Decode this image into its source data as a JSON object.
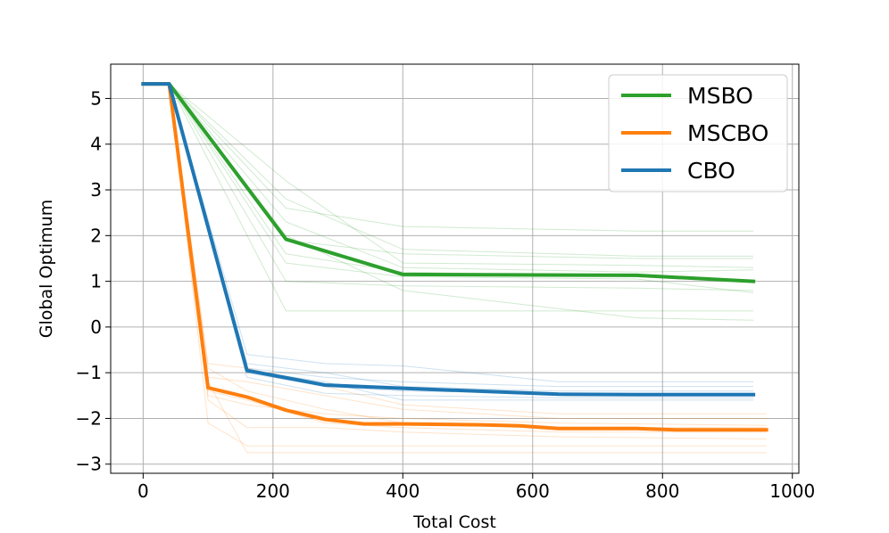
{
  "chart_data": {
    "type": "line",
    "title": "",
    "xlabel": "Total Cost",
    "ylabel": "Global Optimum",
    "xlim": [
      -50,
      1010
    ],
    "ylim": [
      -3.2,
      5.75
    ],
    "xticks": [
      0,
      200,
      400,
      600,
      800,
      1000
    ],
    "yticks": [
      5,
      4,
      3,
      2,
      1,
      0,
      -1,
      -2,
      -3
    ],
    "xtick_labels": [
      "0",
      "200",
      "400",
      "600",
      "800",
      "1000"
    ],
    "ytick_labels": [
      "5",
      "4",
      "3",
      "2",
      "1",
      "0",
      "−1",
      "−2",
      "−3"
    ],
    "grid": true,
    "legend_position": "top-right",
    "colors": {
      "MSBO": "#2ca02c",
      "MSCBO": "#ff7f0e",
      "CBO": "#1f77b4"
    },
    "series": [
      {
        "name": "MSBO",
        "x": [
          0,
          40,
          220,
          400,
          760,
          940
        ],
        "y": [
          5.32,
          5.32,
          1.92,
          1.15,
          1.13,
          1.0
        ]
      },
      {
        "name": "MSCBO",
        "x": [
          0,
          40,
          100,
          160,
          220,
          280,
          340,
          400,
          520,
          580,
          640,
          760,
          820,
          960
        ],
        "y": [
          5.32,
          5.32,
          -1.33,
          -1.53,
          -1.82,
          -2.02,
          -2.12,
          -2.12,
          -2.14,
          -2.16,
          -2.22,
          -2.22,
          -2.25,
          -2.25
        ]
      },
      {
        "name": "CBO",
        "x": [
          0,
          40,
          160,
          280,
          400,
          640,
          760,
          940
        ],
        "y": [
          5.32,
          5.32,
          -0.95,
          -1.27,
          -1.34,
          -1.47,
          -1.48,
          -1.48
        ]
      }
    ],
    "runs": {
      "MSBO": [
        {
          "x": [
            40,
            220,
            400,
            760,
            940
          ],
          "y": [
            5.32,
            1.9,
            1.6,
            1.5,
            1.5
          ]
        },
        {
          "x": [
            40,
            220,
            400,
            760,
            940
          ],
          "y": [
            5.32,
            2.3,
            1.3,
            1.2,
            1.25
          ]
        },
        {
          "x": [
            40,
            220,
            400,
            760,
            940
          ],
          "y": [
            5.32,
            1.6,
            1.2,
            1.1,
            1.0
          ]
        },
        {
          "x": [
            40,
            220,
            400,
            760,
            940
          ],
          "y": [
            5.32,
            1.0,
            0.9,
            0.85,
            0.8
          ]
        },
        {
          "x": [
            40,
            220,
            400,
            760,
            940
          ],
          "y": [
            5.32,
            0.35,
            0.35,
            0.35,
            0.35
          ]
        },
        {
          "x": [
            40,
            220,
            400,
            760,
            940
          ],
          "y": [
            5.32,
            2.8,
            1.7,
            1.55,
            1.55
          ]
        },
        {
          "x": [
            40,
            220,
            400,
            760,
            940
          ],
          "y": [
            5.32,
            3.2,
            1.4,
            1.35,
            1.3
          ]
        },
        {
          "x": [
            40,
            220,
            400,
            760,
            940
          ],
          "y": [
            5.32,
            1.4,
            1.1,
            1.05,
            0.75
          ]
        },
        {
          "x": [
            40,
            220,
            400,
            760,
            940
          ],
          "y": [
            5.32,
            2.0,
            0.8,
            0.2,
            0.15
          ]
        },
        {
          "x": [
            40,
            220,
            400,
            760,
            940
          ],
          "y": [
            5.32,
            2.6,
            2.2,
            2.1,
            2.1
          ]
        }
      ],
      "MSCBO": [
        {
          "x": [
            40,
            100,
            160,
            280,
            400,
            640,
            960
          ],
          "y": [
            5.32,
            -0.8,
            -0.9,
            -1.3,
            -1.7,
            -1.9,
            -1.9
          ]
        },
        {
          "x": [
            40,
            100,
            160,
            280,
            400,
            640,
            960
          ],
          "y": [
            5.32,
            -1.1,
            -1.2,
            -1.5,
            -1.8,
            -2.0,
            -2.0
          ]
        },
        {
          "x": [
            40,
            100,
            160,
            280,
            400,
            640,
            960
          ],
          "y": [
            5.32,
            -1.4,
            -1.6,
            -2.1,
            -2.2,
            -2.3,
            -2.3
          ]
        },
        {
          "x": [
            40,
            100,
            160,
            280,
            400,
            640,
            960
          ],
          "y": [
            5.32,
            -1.6,
            -2.2,
            -2.2,
            -2.3,
            -2.4,
            -2.45
          ]
        },
        {
          "x": [
            40,
            100,
            160,
            280,
            400,
            640,
            960
          ],
          "y": [
            5.32,
            -2.1,
            -2.6,
            -2.6,
            -2.6,
            -2.6,
            -2.6
          ]
        },
        {
          "x": [
            40,
            100,
            160,
            280,
            400,
            640,
            960
          ],
          "y": [
            5.32,
            -1.2,
            -2.75,
            -2.75,
            -2.75,
            -2.75,
            -2.75
          ]
        },
        {
          "x": [
            40,
            100,
            160,
            280,
            400,
            640,
            960
          ],
          "y": [
            5.32,
            -1.5,
            -1.7,
            -1.9,
            -2.0,
            -2.1,
            -2.15
          ]
        },
        {
          "x": [
            40,
            100,
            160,
            280,
            400,
            640,
            960
          ],
          "y": [
            5.32,
            -0.9,
            -1.4,
            -1.8,
            -2.1,
            -2.2,
            -2.2
          ]
        }
      ],
      "CBO": [
        {
          "x": [
            40,
            160,
            280,
            400,
            640,
            940
          ],
          "y": [
            5.32,
            -0.6,
            -0.8,
            -0.85,
            -1.2,
            -1.2
          ]
        },
        {
          "x": [
            40,
            160,
            280,
            400,
            640,
            940
          ],
          "y": [
            5.32,
            -0.9,
            -1.1,
            -1.2,
            -1.3,
            -1.3
          ]
        },
        {
          "x": [
            40,
            160,
            280,
            400,
            640,
            940
          ],
          "y": [
            5.32,
            -1.0,
            -1.3,
            -1.4,
            -1.45,
            -1.45
          ]
        },
        {
          "x": [
            40,
            160,
            280,
            400,
            640,
            940
          ],
          "y": [
            5.32,
            -1.1,
            -1.45,
            -1.5,
            -1.55,
            -1.55
          ]
        },
        {
          "x": [
            40,
            160,
            280,
            400,
            640,
            940
          ],
          "y": [
            5.32,
            -0.95,
            -1.2,
            -1.6,
            -1.6,
            -1.6
          ]
        },
        {
          "x": [
            40,
            160,
            280,
            400,
            640,
            940
          ],
          "y": [
            5.32,
            -0.8,
            -1.0,
            -1.3,
            -1.4,
            -1.4
          ]
        }
      ]
    }
  }
}
